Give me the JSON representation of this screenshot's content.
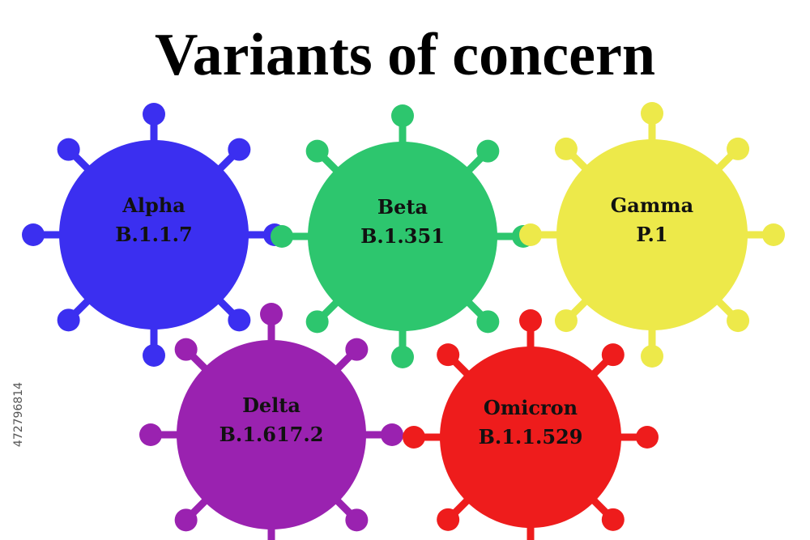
{
  "title": "Variants of concern",
  "watermark_id": "472796814",
  "variants": [
    {
      "name": "Alpha",
      "lineage": "B.1.1.7"
    },
    {
      "name": "Beta",
      "lineage": "B.1.351"
    },
    {
      "name": "Gamma",
      "lineage": "P.1"
    },
    {
      "name": "Delta",
      "lineage": "B.1.617.2"
    },
    {
      "name": "Omicron",
      "lineage": "B.1.1.529"
    }
  ]
}
